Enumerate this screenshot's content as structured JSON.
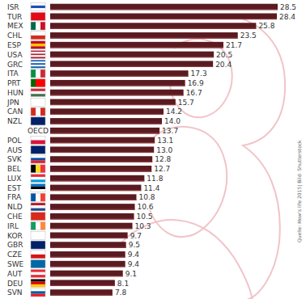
{
  "chart_data": {
    "type": "bar",
    "orientation": "horizontal",
    "data_labels": true,
    "tick_labels": "y",
    "grid": false,
    "source": "Quelle: How's life 2015| Bild: Shutterstock",
    "color": "#5a1b20",
    "categories": [
      "ISR",
      "TUR",
      "MEX",
      "CHL",
      "ESP",
      "USA",
      "GRC",
      "ITA",
      "PRT",
      "HUN",
      "JPN",
      "CAN",
      "NZL",
      "OECD",
      "POL",
      "AUS",
      "SVK",
      "BEL",
      "LUX",
      "EST",
      "FRA",
      "NLD",
      "CHE",
      "IRL",
      "KOR",
      "GBR",
      "CZE",
      "SWE",
      "AUT",
      "DEU",
      "SVN"
    ],
    "values": [
      28.5,
      28.4,
      25.8,
      23.5,
      21.7,
      20.5,
      20.4,
      17.3,
      16.9,
      16.7,
      15.7,
      14.2,
      14.0,
      13.7,
      13.1,
      13.0,
      12.8,
      12.7,
      11.8,
      11.4,
      10.8,
      10.6,
      10.5,
      10.3,
      9.7,
      9.5,
      9.4,
      9.4,
      9.1,
      8.1,
      7.8
    ],
    "value_labels": [
      "28.5",
      "28.4",
      "25.8",
      "23.5",
      "21.7",
      "20.5",
      "20.4",
      "17.3",
      "16.9",
      "16.7",
      "15.7",
      "14.2",
      "14.0",
      "13.7",
      "13.1",
      "13.0",
      "12.8",
      "12.7",
      "11.8",
      "11.4",
      "10.8",
      "10.6",
      "10.5",
      "10.3",
      "9.7",
      "9.5",
      "9.4",
      "9.4",
      "9.1",
      "8.1",
      "7.8"
    ],
    "xlim": [
      0,
      28.5
    ]
  }
}
